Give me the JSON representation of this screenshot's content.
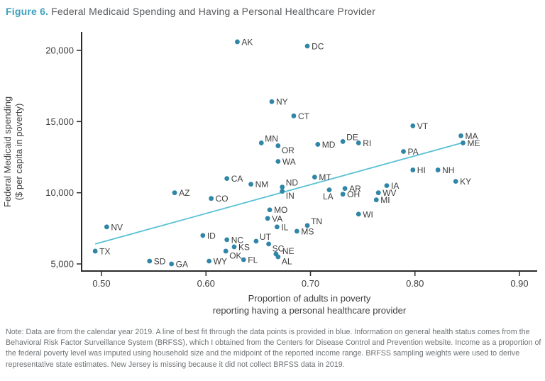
{
  "title": {
    "figure_label": "Figure 6.",
    "text": "Federal Medicaid Spending and Having a Personal Healthcare Provider"
  },
  "note": "Note: Data are from the calendar year 2019. A line of best fit through the data points is provided in blue. Information on general health status comes from the Behavioral Risk Factor Surveillance System (BRFSS), which I obtained from the Centers for Disease Control and Prevention website. Income as a proportion of the federal poverty level was imputed using household size and the midpoint of the reported income range. BRFSS sampling weights were used to derive representative state estimates. New Jersey is missing because it did not collect BRFSS data in 2019.",
  "colors": {
    "figure_label_accent": "#3e9fbf",
    "point": "#2f86a6",
    "trend_line": "#58c1d4",
    "axis": "#2b2b2b",
    "tick_text": "#3d3d3d",
    "state_label_text": "#3c3c3c"
  },
  "chart_data": {
    "type": "scatter",
    "title": "",
    "xlabel_line1": "Proportion of adults in poverty",
    "xlabel_line2": "reporting having a personal healthcare provider",
    "ylabel_line1": "Federal Medicaid spending",
    "ylabel_line2": "($ per capita in poverty)",
    "xlim": [
      0.481,
      0.917
    ],
    "ylim": [
      4500,
      21300
    ],
    "x_ticks": [
      0.5,
      0.6,
      0.7,
      0.8,
      0.9
    ],
    "x_tick_labels": [
      "0.50",
      "0.60",
      "0.70",
      "0.80",
      "0.90"
    ],
    "y_ticks": [
      5000,
      10000,
      15000,
      20000
    ],
    "y_tick_labels": [
      "5,000",
      "10,000",
      "15,000",
      "20,000"
    ],
    "grid": false,
    "legend": "none",
    "trend_line": {
      "x1": 0.494,
      "y1": 6400,
      "x2": 0.846,
      "y2": 13520,
      "note": "line of best fit, blue"
    },
    "points": [
      {
        "state": "AK",
        "x": 0.63,
        "y": 20600,
        "labelPos": "r"
      },
      {
        "state": "DC",
        "x": 0.697,
        "y": 20300,
        "labelPos": "r"
      },
      {
        "state": "NY",
        "x": 0.663,
        "y": 16400,
        "labelPos": "r"
      },
      {
        "state": "CT",
        "x": 0.684,
        "y": 15400,
        "labelPos": "r"
      },
      {
        "state": "VT",
        "x": 0.798,
        "y": 14700,
        "labelPos": "r"
      },
      {
        "state": "MA",
        "x": 0.844,
        "y": 14000,
        "labelPos": "r"
      },
      {
        "state": "ME",
        "x": 0.846,
        "y": 13500,
        "labelPos": "r"
      },
      {
        "state": "DE",
        "x": 0.731,
        "y": 13600,
        "labelPos": "tr"
      },
      {
        "state": "RI",
        "x": 0.746,
        "y": 13500,
        "labelPos": "r"
      },
      {
        "state": "MN",
        "x": 0.653,
        "y": 13500,
        "labelPos": "tr"
      },
      {
        "state": "MD",
        "x": 0.707,
        "y": 13400,
        "labelPos": "r"
      },
      {
        "state": "OR",
        "x": 0.669,
        "y": 13300,
        "labelPos": "br"
      },
      {
        "state": "PA",
        "x": 0.789,
        "y": 12900,
        "labelPos": "r"
      },
      {
        "state": "WA",
        "x": 0.669,
        "y": 12200,
        "labelPos": "r"
      },
      {
        "state": "HI",
        "x": 0.798,
        "y": 11600,
        "labelPos": "r"
      },
      {
        "state": "NH",
        "x": 0.822,
        "y": 11600,
        "labelPos": "r"
      },
      {
        "state": "MT",
        "x": 0.704,
        "y": 11100,
        "labelPos": "r"
      },
      {
        "state": "CA",
        "x": 0.62,
        "y": 11000,
        "labelPos": "r"
      },
      {
        "state": "KY",
        "x": 0.839,
        "y": 10800,
        "labelPos": "r"
      },
      {
        "state": "NM",
        "x": 0.643,
        "y": 10600,
        "labelPos": "r"
      },
      {
        "state": "IA",
        "x": 0.773,
        "y": 10500,
        "labelPos": "r"
      },
      {
        "state": "ND",
        "x": 0.673,
        "y": 10400,
        "labelPos": "tr"
      },
      {
        "state": "AR",
        "x": 0.733,
        "y": 10300,
        "labelPos": "r"
      },
      {
        "state": "LA",
        "x": 0.718,
        "y": 10200,
        "labelPos": "b"
      },
      {
        "state": "IN",
        "x": 0.673,
        "y": 10100,
        "labelPos": "br"
      },
      {
        "state": "AZ",
        "x": 0.57,
        "y": 10000,
        "labelPos": "r"
      },
      {
        "state": "WV",
        "x": 0.765,
        "y": 10000,
        "labelPos": "r"
      },
      {
        "state": "OH",
        "x": 0.731,
        "y": 9900,
        "labelPos": "r"
      },
      {
        "state": "CO",
        "x": 0.605,
        "y": 9600,
        "labelPos": "r"
      },
      {
        "state": "MI",
        "x": 0.763,
        "y": 9500,
        "labelPos": "r"
      },
      {
        "state": "MO",
        "x": 0.661,
        "y": 8800,
        "labelPos": "r"
      },
      {
        "state": "WI",
        "x": 0.746,
        "y": 8500,
        "labelPos": "r"
      },
      {
        "state": "VA",
        "x": 0.659,
        "y": 8200,
        "labelPos": "r"
      },
      {
        "state": "TN",
        "x": 0.697,
        "y": 7700,
        "labelPos": "tr"
      },
      {
        "state": "NV",
        "x": 0.505,
        "y": 7600,
        "labelPos": "r"
      },
      {
        "state": "IL",
        "x": 0.668,
        "y": 7600,
        "labelPos": "r"
      },
      {
        "state": "MS",
        "x": 0.687,
        "y": 7300,
        "labelPos": "r"
      },
      {
        "state": "ID",
        "x": 0.597,
        "y": 7000,
        "labelPos": "r"
      },
      {
        "state": "NC",
        "x": 0.62,
        "y": 6700,
        "labelPos": "r"
      },
      {
        "state": "UT",
        "x": 0.648,
        "y": 6600,
        "labelPos": "tr"
      },
      {
        "state": "SC",
        "x": 0.66,
        "y": 6400,
        "labelPos": "br"
      },
      {
        "state": "KS",
        "x": 0.627,
        "y": 6200,
        "labelPos": "r"
      },
      {
        "state": "TX",
        "x": 0.494,
        "y": 5900,
        "labelPos": "r"
      },
      {
        "state": "OK",
        "x": 0.619,
        "y": 5900,
        "labelPos": "br"
      },
      {
        "state": "NE",
        "x": 0.667,
        "y": 5700,
        "labelPos": "r",
        "dx": 9,
        "dy": 0
      },
      {
        "state": "AL",
        "x": 0.669,
        "y": 5500,
        "labelPos": "br"
      },
      {
        "state": "FL",
        "x": 0.636,
        "y": 5300,
        "labelPos": "r"
      },
      {
        "state": "WY",
        "x": 0.603,
        "y": 5200,
        "labelPos": "r"
      },
      {
        "state": "SD",
        "x": 0.546,
        "y": 5200,
        "labelPos": "r"
      },
      {
        "state": "GA",
        "x": 0.567,
        "y": 5000,
        "labelPos": "r"
      }
    ]
  }
}
